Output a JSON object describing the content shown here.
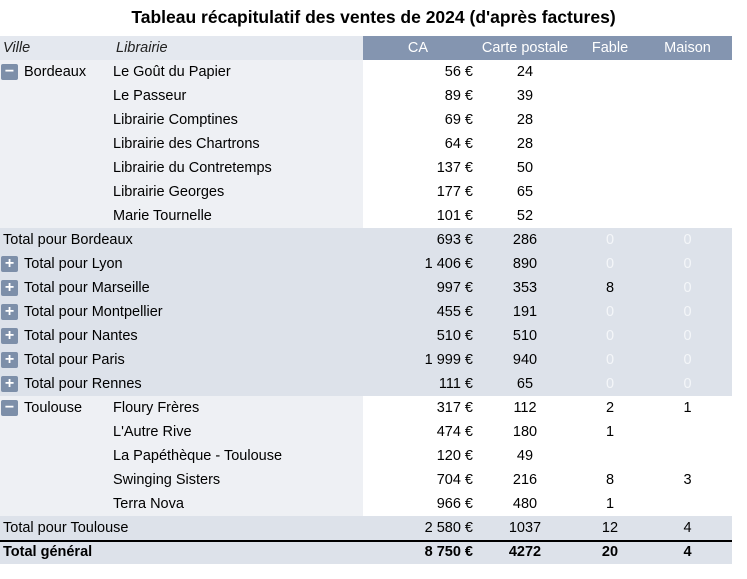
{
  "title": "Tableau récapitulatif des ventes de 2024 (d'après factures)",
  "headers": {
    "ville": "Ville",
    "librairie": "Librairie",
    "ca": "CA",
    "carte_postale": "Carte postale",
    "fable": "Fable",
    "maison": "Maison"
  },
  "icons": {
    "collapse": "−",
    "expand": "+"
  },
  "groups": [
    {
      "ville": "Bordeaux",
      "expanded": true,
      "rows": [
        {
          "librairie": "Le Goût du Papier",
          "ca": "56 €",
          "cp": "24",
          "fable": "",
          "maison": ""
        },
        {
          "librairie": "Le Passeur",
          "ca": "89 €",
          "cp": "39",
          "fable": "",
          "maison": ""
        },
        {
          "librairie": "Librairie Comptines",
          "ca": "69 €",
          "cp": "28",
          "fable": "",
          "maison": ""
        },
        {
          "librairie": "Librairie des Chartrons",
          "ca": "64 €",
          "cp": "28",
          "fable": "",
          "maison": ""
        },
        {
          "librairie": "Librairie du Contretemps",
          "ca": "137 €",
          "cp": "50",
          "fable": "",
          "maison": ""
        },
        {
          "librairie": "Librairie Georges",
          "ca": "177 €",
          "cp": "65",
          "fable": "",
          "maison": ""
        },
        {
          "librairie": "Marie Tournelle",
          "ca": "101 €",
          "cp": "52",
          "fable": "",
          "maison": ""
        }
      ],
      "total": {
        "label": "Total pour Bordeaux",
        "ca": "693 €",
        "cp": "286",
        "fable": "0",
        "maison": "0",
        "fable_zero": true,
        "maison_zero": true
      }
    },
    {
      "ville": "Lyon",
      "expanded": false,
      "total": {
        "label": "Total pour Lyon",
        "ca": "1 406 €",
        "cp": "890",
        "fable": "0",
        "maison": "0",
        "fable_zero": true,
        "maison_zero": true
      }
    },
    {
      "ville": "Marseille",
      "expanded": false,
      "total": {
        "label": "Total pour Marseille",
        "ca": "997 €",
        "cp": "353",
        "fable": "8",
        "maison": "0",
        "fable_zero": false,
        "maison_zero": true
      }
    },
    {
      "ville": "Montpellier",
      "expanded": false,
      "total": {
        "label": "Total pour Montpellier",
        "ca": "455 €",
        "cp": "191",
        "fable": "0",
        "maison": "0",
        "fable_zero": true,
        "maison_zero": true
      }
    },
    {
      "ville": "Nantes",
      "expanded": false,
      "total": {
        "label": "Total pour Nantes",
        "ca": "510 €",
        "cp": "510",
        "fable": "0",
        "maison": "0",
        "fable_zero": true,
        "maison_zero": true
      }
    },
    {
      "ville": "Paris",
      "expanded": false,
      "total": {
        "label": "Total pour Paris",
        "ca": "1 999 €",
        "cp": "940",
        "fable": "0",
        "maison": "0",
        "fable_zero": true,
        "maison_zero": true
      }
    },
    {
      "ville": "Rennes",
      "expanded": false,
      "total": {
        "label": "Total pour Rennes",
        "ca": "111 €",
        "cp": "65",
        "fable": "0",
        "maison": "0",
        "fable_zero": true,
        "maison_zero": true
      }
    },
    {
      "ville": "Toulouse",
      "expanded": true,
      "rows": [
        {
          "librairie": "Floury Frères",
          "ca": "317 €",
          "cp": "112",
          "fable": "2",
          "maison": "1"
        },
        {
          "librairie": "L'Autre Rive",
          "ca": "474 €",
          "cp": "180",
          "fable": "1",
          "maison": ""
        },
        {
          "librairie": "La Papéthèque - Toulouse",
          "ca": "120 €",
          "cp": "49",
          "fable": "",
          "maison": ""
        },
        {
          "librairie": "Swinging Sisters",
          "ca": "704 €",
          "cp": "216",
          "fable": "8",
          "maison": "3"
        },
        {
          "librairie": "Terra Nova",
          "ca": "966 €",
          "cp": "480",
          "fable": "1",
          "maison": ""
        }
      ],
      "total": {
        "label": "Total pour Toulouse",
        "ca": "2 580 €",
        "cp": "1037",
        "fable": "12",
        "maison": "4",
        "fable_zero": false,
        "maison_zero": false
      }
    }
  ],
  "grand_total": {
    "label": "Total général",
    "ca": "8 750 €",
    "cp": "4272",
    "fable": "20",
    "maison": "4"
  },
  "colors": {
    "header_dark": "#8495b0",
    "header_light": "#e4e8ef",
    "total_row": "#dde2ea",
    "detail_left": "#eef0f4",
    "button": "#7d8fa9"
  }
}
